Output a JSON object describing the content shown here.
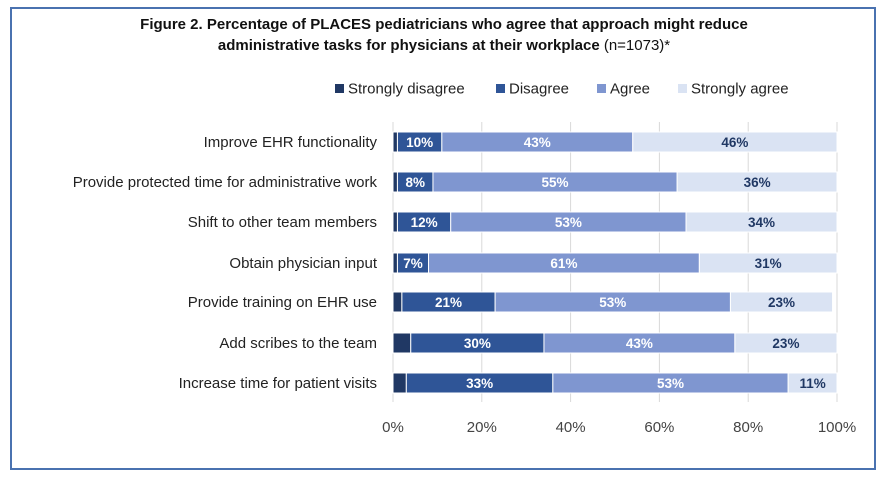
{
  "title_line1": "Figure 2. Percentage of PLACES pediatricians who agree that approach might reduce",
  "title_line2_bold": "administrative tasks for physicians at their workplace",
  "title_line2_rest": " (n=1073)*",
  "colors": {
    "Strongly disagree": "#203864",
    "Disagree": "#2f5597",
    "Agree": "#7f96d0",
    "Strongly agree": "#dae3f3",
    "frame": "#4a72b0",
    "grid": "#d9d9d9"
  },
  "chart_data": {
    "type": "bar",
    "orientation": "horizontal",
    "stacked": true,
    "categories": [
      "Improve EHR functionality",
      "Provide protected time for administrative work",
      "Shift to other team members",
      "Obtain physician input",
      "Provide training on EHR use",
      "Add scribes to the team",
      "Increase time for patient visits"
    ],
    "series": [
      {
        "name": "Strongly disagree",
        "values": [
          1,
          1,
          1,
          1,
          2,
          4,
          3
        ],
        "labels": [
          "",
          "",
          "",
          "",
          "",
          "",
          ""
        ]
      },
      {
        "name": "Disagree",
        "values": [
          10,
          8,
          12,
          7,
          21,
          30,
          33
        ],
        "labels": [
          "10%",
          "8%",
          "12%",
          "7%",
          "21%",
          "30%",
          "33%"
        ]
      },
      {
        "name": "Agree",
        "values": [
          43,
          55,
          53,
          61,
          53,
          43,
          53
        ],
        "labels": [
          "43%",
          "55%",
          "53%",
          "61%",
          "53%",
          "43%",
          "53%"
        ]
      },
      {
        "name": "Strongly agree",
        "values": [
          46,
          36,
          34,
          31,
          23,
          23,
          11
        ],
        "labels": [
          "46%",
          "36%",
          "34%",
          "31%",
          "23%",
          "23%",
          "11%"
        ]
      }
    ],
    "xlim": [
      0,
      100
    ],
    "xticks": [
      "0%",
      "20%",
      "40%",
      "60%",
      "80%",
      "100%"
    ],
    "grid": true,
    "legend_position": "top"
  }
}
